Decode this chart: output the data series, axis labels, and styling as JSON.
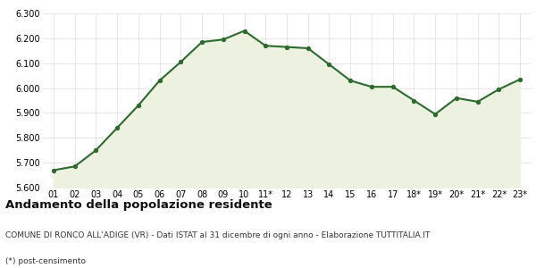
{
  "x_labels": [
    "01",
    "02",
    "03",
    "04",
    "05",
    "06",
    "07",
    "08",
    "09",
    "10",
    "11*",
    "12",
    "13",
    "14",
    "15",
    "16",
    "17",
    "18*",
    "19*",
    "20*",
    "21*",
    "22*",
    "23*"
  ],
  "values": [
    5670,
    5685,
    5750,
    5840,
    5930,
    6030,
    6105,
    6185,
    6195,
    6230,
    6170,
    6165,
    6160,
    6095,
    6030,
    6005,
    6005,
    5950,
    5895,
    5960,
    5945,
    5995,
    6035
  ],
  "line_color": "#2d6a2d",
  "fill_color": "#edf2e0",
  "marker": "o",
  "marker_size": 2.8,
  "line_width": 1.5,
  "ylim": [
    5600,
    6300
  ],
  "yticks": [
    5600,
    5700,
    5800,
    5900,
    6000,
    6100,
    6200,
    6300
  ],
  "title": "Andamento della popolazione residente",
  "subtitle": "COMUNE DI RONCO ALL'ADIGE (VR) - Dati ISTAT al 31 dicembre di ogni anno - Elaborazione TUTTITALIA.IT",
  "footnote": "(*) post-censimento",
  "title_fontsize": 9.5,
  "subtitle_fontsize": 6.5,
  "footnote_fontsize": 6.5,
  "tick_fontsize": 7,
  "background_color": "#ffffff",
  "plot_bg_color": "#ffffff",
  "grid_color": "#dddddd"
}
